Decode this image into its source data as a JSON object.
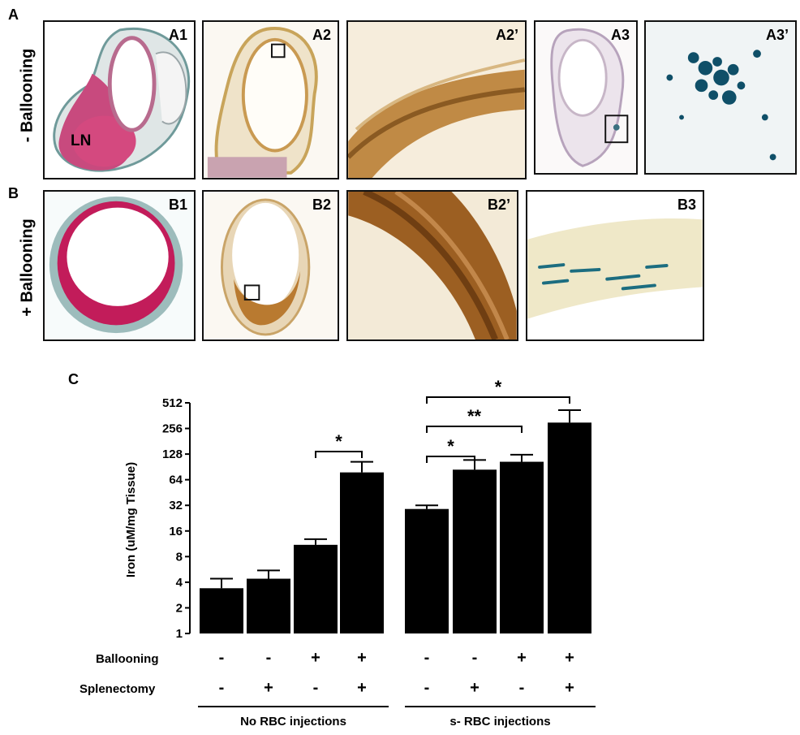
{
  "panels": {
    "A": {
      "letter": "A",
      "row_label": "- Ballooning",
      "tiles": [
        {
          "label": "A1"
        },
        {
          "label": "A2"
        },
        {
          "label": "A2’"
        },
        {
          "label": "A3"
        },
        {
          "label": "A3’"
        }
      ],
      "ln_label": "LN"
    },
    "B": {
      "letter": "B",
      "row_label": "+ Ballooning",
      "tiles": [
        {
          "label": "B1"
        },
        {
          "label": "B2"
        },
        {
          "label": "B2’"
        },
        {
          "label": "B3"
        }
      ]
    },
    "C": {
      "letter": "C"
    }
  },
  "chart_data": {
    "type": "bar",
    "ylabel": "Iron (uM/mg Tissue)",
    "yscale": "log2",
    "ylim": [
      1,
      512
    ],
    "yticks": [
      "1",
      "2",
      "4",
      "8",
      "16",
      "32",
      "64",
      "128",
      "256",
      "512"
    ],
    "values": [
      3.4,
      4.4,
      11,
      78,
      29,
      84,
      104,
      300
    ],
    "errors": [
      1.0,
      1.1,
      1.8,
      26,
      3,
      25,
      22,
      120
    ],
    "conditions": {
      "ballooning_label": "Ballooning",
      "splenectomy_label": "Splenectomy",
      "ballooning": [
        "-",
        "-",
        "+",
        "+",
        "-",
        "-",
        "+",
        "+"
      ],
      "splenectomy": [
        "-",
        "+",
        "-",
        "+",
        "-",
        "+",
        "-",
        "+"
      ]
    },
    "groups": [
      {
        "label": "No RBC injections",
        "bars": [
          0,
          3
        ]
      },
      {
        "label": "s- RBC injections",
        "bars": [
          4,
          7
        ]
      }
    ],
    "significance": [
      {
        "from": 2,
        "to": 3,
        "label": "*"
      },
      {
        "from": 4,
        "to": 5,
        "label": "*"
      },
      {
        "from": 4,
        "to": 6,
        "label": "**"
      },
      {
        "from": 4,
        "to": 7,
        "label": "*"
      }
    ],
    "colors": {
      "bar": "#000000"
    }
  }
}
